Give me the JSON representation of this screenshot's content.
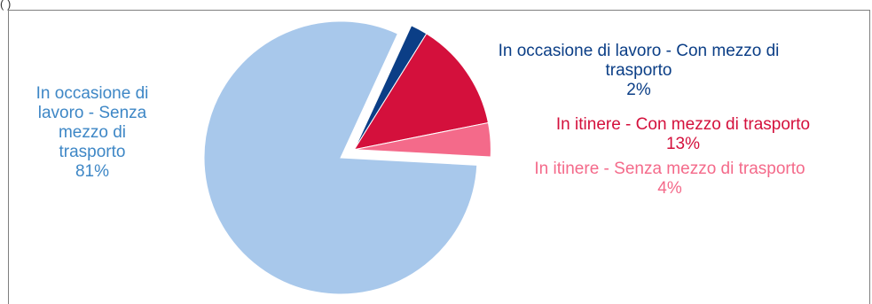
{
  "header_fragment": "(                )",
  "chart_data": {
    "type": "pie",
    "title": "",
    "categories": [
      "In occasione di lavoro - Senza mezzo di trasporto",
      "In occasione di lavoro - Con mezzo di trasporto",
      "In itinere - Con mezzo di trasporto",
      "In itinere - Senza mezzo di trasporto"
    ],
    "values": [
      81,
      2,
      13,
      4
    ],
    "value_labels": [
      "81%",
      "2%",
      "13%",
      "4%"
    ],
    "colors": [
      "#a8c8eb",
      "#0b3e86",
      "#d4103c",
      "#f46a8a"
    ],
    "label_colors": [
      "#3e87c6",
      "#0b3e86",
      "#d4103c",
      "#f46a8a"
    ],
    "exploded_slices": [
      1,
      2,
      3
    ],
    "legend": "none"
  }
}
